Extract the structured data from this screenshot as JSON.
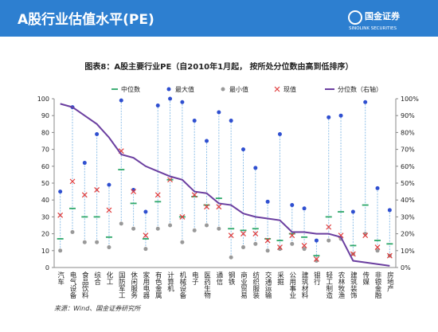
{
  "header": {
    "title": "A股行业估值水平(PE)",
    "logo": "国金证券",
    "logo_sub": "SINOLINK SECURITIES"
  },
  "source": "来源：Wind、国金证券研究所",
  "chart_data": {
    "type": "range-dot",
    "title": "图表8：A股主要行业PE（自2010年1月起，  按所处分位数由高到低排序）",
    "categories": [
      "汽车",
      "电气设备",
      "食品饮料",
      "综合",
      "化工",
      "国防军工",
      "休闲服务",
      "家用电器",
      "有色金属",
      "计算机",
      "机械设备",
      "电子",
      "医药生物",
      "通信",
      "钢铁",
      "商业贸易",
      "纺织服装",
      "交通运输",
      "采掘",
      "公用事业",
      "建筑材料",
      "银行",
      "轻工制造",
      "农林牧渔",
      "建筑装饰",
      "传媒",
      "非银金融",
      "房地产"
    ],
    "series": [
      {
        "name": "中位数",
        "color": "#2ea86a",
        "marker": "dash",
        "values": [
          17,
          35,
          30,
          30,
          18,
          58,
          38,
          17,
          39,
          52,
          30,
          42,
          37,
          41,
          23,
          22,
          23,
          17,
          16,
          20,
          18,
          7,
          30,
          33,
          13,
          37,
          16,
          14
        ]
      },
      {
        "name": "最大值",
        "color": "#2f4fd0",
        "marker": "dot",
        "values": [
          45,
          95,
          62,
          79,
          49,
          99,
          46,
          33,
          96,
          100,
          98,
          87,
          75,
          92,
          87,
          70,
          59,
          39,
          79,
          37,
          35,
          16,
          89,
          90,
          33,
          98,
          47,
          34
        ]
      },
      {
        "name": "最小值",
        "color": "#999999",
        "marker": "dot",
        "values": [
          10,
          21,
          15,
          15,
          12,
          26,
          23,
          11,
          23,
          25,
          15,
          22,
          25,
          23,
          6,
          12,
          14,
          10,
          11,
          14,
          11,
          4,
          16,
          17,
          8,
          20,
          10,
          7
        ]
      },
      {
        "name": "现值",
        "color": "#e03c3c",
        "marker": "x",
        "values": [
          31,
          51,
          43,
          46,
          34,
          69,
          45,
          19,
          43,
          52,
          30,
          43,
          36,
          36,
          19,
          20,
          20,
          16,
          12,
          19,
          13,
          5,
          24,
          19,
          8,
          19,
          12,
          7
        ]
      },
      {
        "name": "分位数（右轴）",
        "color": "#6b3fa0",
        "marker": "line",
        "axis": "y2",
        "values": [
          97,
          95,
          90,
          85,
          77,
          67,
          65,
          60,
          57,
          54,
          52,
          45,
          44,
          38,
          37,
          32,
          30,
          29,
          28,
          21,
          21,
          20,
          20,
          18,
          4,
          3,
          2,
          1
        ]
      }
    ],
    "ylim": [
      0,
      100
    ],
    "yticks": [
      0,
      10,
      20,
      30,
      40,
      50,
      60,
      70,
      80,
      90,
      100
    ],
    "y2lim": [
      0,
      100
    ],
    "y2ticks": [
      {
        "value": 0,
        "label": "0%"
      },
      {
        "value": 10,
        "label": "10%"
      },
      {
        "value": 20,
        "label": "20%"
      },
      {
        "value": 30,
        "label": "30%"
      },
      {
        "value": 40,
        "label": "40%"
      },
      {
        "value": 50,
        "label": "50%"
      },
      {
        "value": 60,
        "label": "60%"
      },
      {
        "value": 70,
        "label": "70%"
      },
      {
        "value": 80,
        "label": "80%"
      },
      {
        "value": 90,
        "label": "90%"
      },
      {
        "value": 100,
        "label": "100%"
      }
    ]
  }
}
